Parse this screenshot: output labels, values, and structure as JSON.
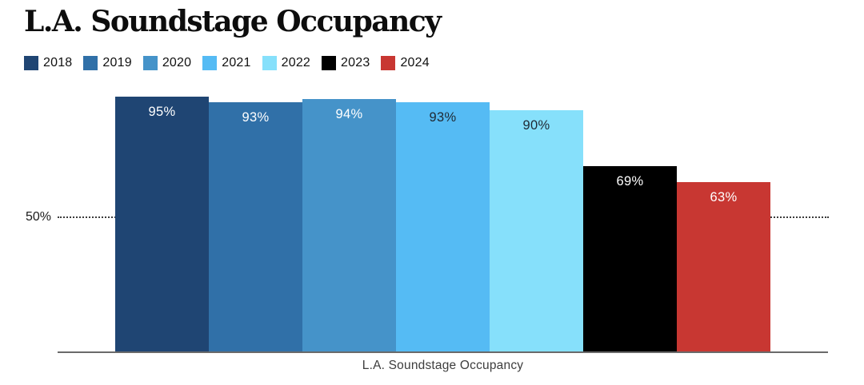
{
  "title": "L.A. Soundstage Occupancy",
  "caption": "L.A. Soundstage Occupancy",
  "legend": [
    {
      "label": "2018",
      "color": "#1F4573"
    },
    {
      "label": "2019",
      "color": "#3070A8"
    },
    {
      "label": "2020",
      "color": "#4593C9"
    },
    {
      "label": "2021",
      "color": "#55BBF4"
    },
    {
      "label": "2022",
      "color": "#86E0FB"
    },
    {
      "label": "2023",
      "color": "#000000"
    },
    {
      "label": "2024",
      "color": "#C83732"
    }
  ],
  "chart_data": {
    "type": "bar",
    "title": "L.A. Soundstage Occupancy",
    "categories": [
      "2018",
      "2019",
      "2020",
      "2021",
      "2022",
      "2023",
      "2024"
    ],
    "values": [
      95,
      93,
      94,
      93,
      90,
      69,
      63
    ],
    "value_labels": [
      "95%",
      "93%",
      "94%",
      "93%",
      "90%",
      "69%",
      "63%"
    ],
    "unit": "%",
    "bar_colors": [
      "#1F4573",
      "#3070A8",
      "#4593C9",
      "#55BBF4",
      "#86E0FB",
      "#000000",
      "#C83732"
    ],
    "value_label_colors": [
      "#ffffff",
      "#ffffff",
      "#ffffff",
      "#1f2933",
      "#1f2933",
      "#ffffff",
      "#ffffff"
    ],
    "xlabel": "L.A. Soundstage Occupancy",
    "ylabel": "",
    "ylim": [
      0,
      100
    ],
    "gridline": {
      "value": 50,
      "label": "50%",
      "style": "dotted"
    },
    "legend_position": "top",
    "grid": "single dotted horizontal line at 50%",
    "bars_touching": true,
    "value_labels_inside_top": true
  },
  "colors": {
    "background": "#ffffff",
    "axis_line": "#6a6a6a",
    "gridline": "#3c3c3c",
    "title_text": "#0d0d0d",
    "caption_text": "#3d3d3d",
    "grid_label_text": "#1a1a1a"
  }
}
